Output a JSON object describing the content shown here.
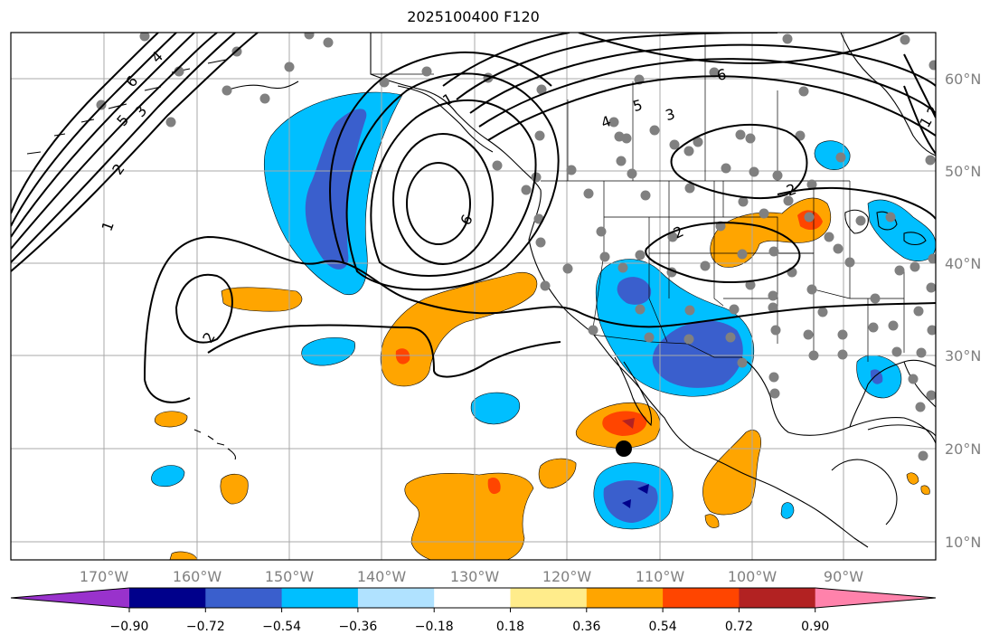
{
  "title": "2025100400 F120",
  "lon_labels": [
    "170°W",
    "160°W",
    "150°W",
    "140°W",
    "130°W",
    "120°W",
    "110°W",
    "100°W",
    "90°W"
  ],
  "lat_labels": [
    "10°N",
    "20°N",
    "30°N",
    "40°N",
    "50°N",
    "60°N"
  ],
  "colorbar": {
    "colors": [
      "#9932cc",
      "#00008b",
      "#3a5fcd",
      "#00bfff",
      "#b0e2ff",
      "#ffffff",
      "#ffec8b",
      "#ffa500",
      "#ff4500",
      "#b22222",
      "#ff82ab"
    ],
    "tick_labels": [
      "−0.90",
      "−0.72",
      "−0.54",
      "−0.36",
      "−0.18",
      "0.18",
      "0.36",
      "0.54",
      "0.72",
      "0.90"
    ]
  },
  "contour_labels": [
    "1",
    "2",
    "3",
    "4",
    "5",
    "6",
    "1",
    "2",
    "3",
    "4",
    "5",
    "6",
    "2",
    "6",
    "1",
    "2",
    "2"
  ],
  "storm_marker": {
    "lon": -113.5,
    "lat": 20.0
  }
}
